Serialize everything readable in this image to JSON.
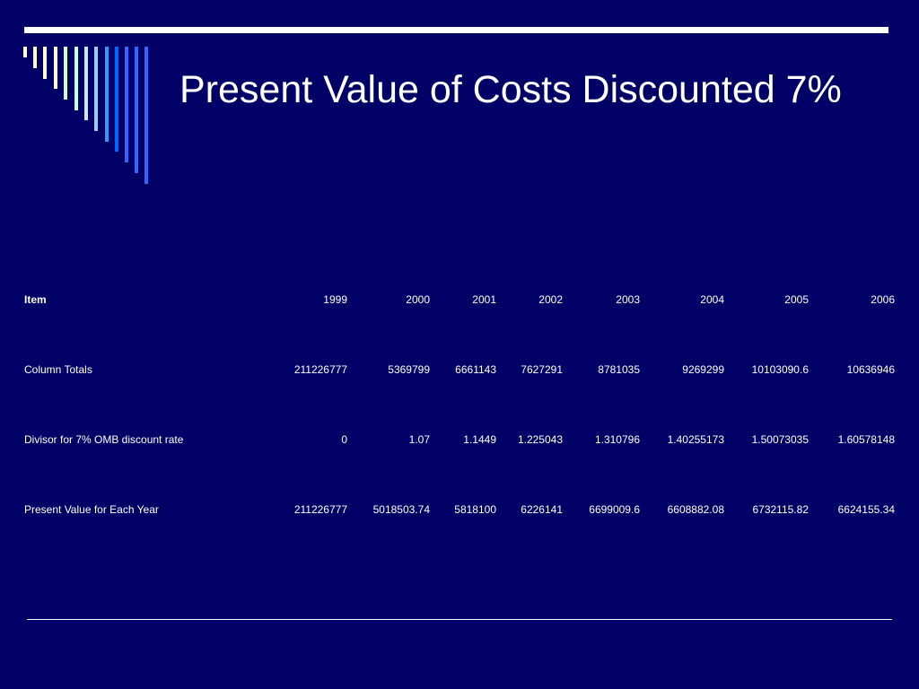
{
  "slide": {
    "title": "Present Value of Costs Discounted 7%",
    "colors": {
      "background": "#000066",
      "text": "#ffffff",
      "stripes": [
        "#ffffcc",
        "#ffffcc",
        "#ffffcc",
        "#ffffcc",
        "#ccffcc",
        "#ccffff",
        "#cce6ff",
        "#99ccff",
        "#3399ff",
        "#0066ff",
        "#3366ff"
      ]
    }
  },
  "table": {
    "header": [
      "Item",
      "1999",
      "2000",
      "2001",
      "2002",
      "2003",
      "2004",
      "2005",
      "2006"
    ],
    "rows": [
      [
        "Column Totals",
        "211226777",
        "5369799",
        "6661143",
        "7627291",
        "8781035",
        "9269299",
        "10103090.6",
        "10636946"
      ],
      [
        "Divisor for 7% OMB discount rate",
        "0",
        "1.07",
        "1.1449",
        "1.225043",
        "1.310796",
        "1.40255173",
        "1.50073035",
        "1.60578148"
      ],
      [
        "Present Value for Each Year",
        "211226777",
        "5018503.74",
        "5818100",
        "6226141",
        "6699009.6",
        "6608882.08",
        "6732115.82",
        "6624155.34"
      ]
    ]
  }
}
